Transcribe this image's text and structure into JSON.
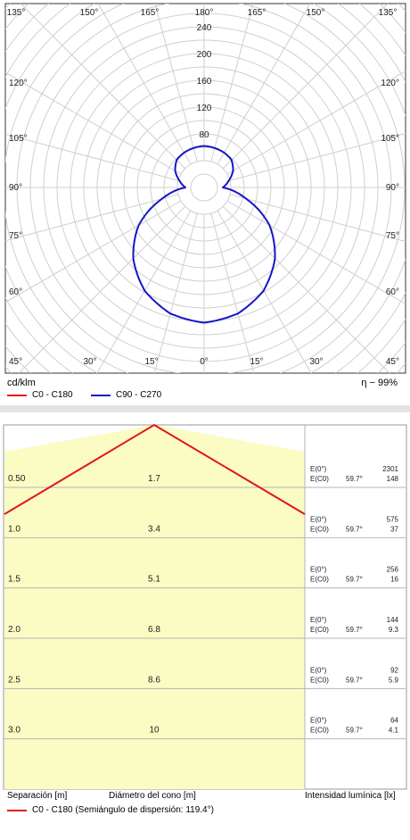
{
  "polar": {
    "unit_label": "cd/klm",
    "efficiency_label": "η − 99%",
    "angle_labels_top": [
      "135°",
      "150°",
      "165°",
      "180°",
      "165°",
      "150°",
      "135°"
    ],
    "angle_labels_side": [
      "120°",
      "105°",
      "90°",
      "75°",
      "60°",
      "45°"
    ],
    "angle_labels_bottom": [
      "30°",
      "15°",
      "0°",
      "15°",
      "30°"
    ],
    "radial_labels": [
      "80",
      "120",
      "160",
      "200",
      "240"
    ],
    "legend": [
      {
        "label": "C0 - C180",
        "color": "#e0161b"
      },
      {
        "label": "C90 - C270",
        "color": "#1616c8"
      }
    ]
  },
  "cone": {
    "footer_left": "Separación [m]",
    "footer_mid": "Diámetro del cono [m]",
    "footer_right": "Intensidad lumínica [lx]",
    "legend_label": "C0 - C180 (Semiángulo de dispersión: 119.4°)",
    "legend_color": "#e0161b",
    "fill_color": "#fbfbc4",
    "rows": [
      {
        "sep": "0.50",
        "diam": "1.7",
        "e0_label": "E(0°)",
        "ec0_label": "E(C0)",
        "angle": "59.7°",
        "e0": "2301",
        "ec0": "148"
      },
      {
        "sep": "1.0",
        "diam": "3.4",
        "e0_label": "E(0°)",
        "ec0_label": "E(C0)",
        "angle": "59.7°",
        "e0": "575",
        "ec0": "37"
      },
      {
        "sep": "1.5",
        "diam": "5.1",
        "e0_label": "E(0°)",
        "ec0_label": "E(C0)",
        "angle": "59.7°",
        "e0": "256",
        "ec0": "16"
      },
      {
        "sep": "2.0",
        "diam": "6.8",
        "e0_label": "E(0°)",
        "ec0_label": "E(C0)",
        "angle": "59.7°",
        "e0": "144",
        "ec0": "9.3"
      },
      {
        "sep": "2.5",
        "diam": "8.6",
        "e0_label": "E(0°)",
        "ec0_label": "E(C0)",
        "angle": "59.7°",
        "e0": "92",
        "ec0": "5.9"
      },
      {
        "sep": "3.0",
        "diam": "10",
        "e0_label": "E(0°)",
        "ec0_label": "E(C0)",
        "angle": "59.7°",
        "e0": "64",
        "ec0": "4.1"
      }
    ]
  },
  "chart_data": [
    {
      "type": "polar",
      "unit": "cd/klm",
      "radial_ticks": [
        80,
        120,
        160,
        200,
        240
      ],
      "efficiency": "η − 99%",
      "series": [
        {
          "name": "C90 - C270",
          "angles": [
            0,
            15,
            30,
            45,
            60,
            75,
            90,
            105,
            120,
            135,
            150,
            165,
            180
          ],
          "values": [
            202,
            195,
            178,
            150,
            113,
            65,
            28,
            38,
            50,
            58,
            60,
            61,
            62
          ]
        }
      ]
    },
    {
      "type": "table",
      "title": "C0 - C180 (Semiángulo de dispersión: 119.4°)",
      "columns": [
        "Separación [m]",
        "Diámetro del cono [m]",
        "E(0°)",
        "E(C0)"
      ],
      "rows": [
        [
          0.5,
          1.7,
          2301,
          148
        ],
        [
          1.0,
          3.4,
          575,
          37
        ],
        [
          1.5,
          5.1,
          256,
          16
        ],
        [
          2.0,
          6.8,
          144,
          9.3
        ],
        [
          2.5,
          8.6,
          92,
          5.9
        ],
        [
          3.0,
          10,
          64,
          4.1
        ]
      ]
    }
  ]
}
